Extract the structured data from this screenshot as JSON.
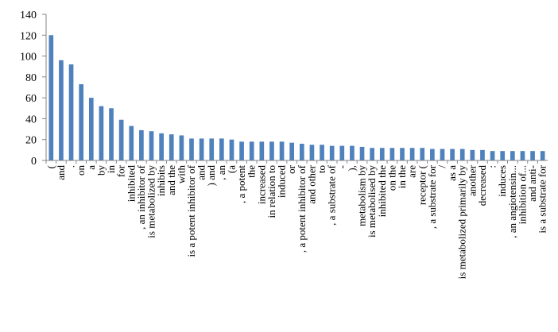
{
  "chart_data": {
    "type": "bar",
    "title": "",
    "xlabel": "",
    "ylabel": "",
    "ylim": [
      0,
      140
    ],
    "yticks": [
      0,
      20,
      40,
      60,
      80,
      100,
      120,
      140
    ],
    "grid": false,
    "legend": "none",
    "bar_color": "#4f81bd",
    "categories": [
      "(",
      "and",
      ".",
      "on",
      "a",
      "by",
      "in",
      "for",
      "inhibited",
      ", an inhibitor of",
      "is metabolized by",
      "inhibits",
      "and the",
      "with",
      "is a potent inhibitor of",
      "and",
      ") and",
      ", an",
      "(a",
      ", a potent",
      "the",
      "increased",
      "in relation to",
      "induced",
      "or",
      ", a potent inhibitor of",
      "and other",
      "to",
      ", a substrate of",
      "-",
      "),",
      "metabolism by",
      "is metabolised by",
      "inhibited the",
      "on the",
      "in the",
      "are",
      "receptor (",
      ", a substrate for",
      "/",
      "as a",
      "is metabolized primarily by",
      "another",
      "decreased",
      ":",
      "induces",
      ", an angiotensin...",
      "inhibition of...",
      "and anti-",
      "is a substrate for"
    ],
    "values": [
      120,
      96,
      92,
      73,
      60,
      52,
      50,
      39,
      33,
      29,
      28,
      26,
      25,
      24,
      21,
      21,
      21,
      21,
      20,
      18,
      18,
      18,
      18,
      18,
      17,
      16,
      15,
      15,
      14,
      14,
      14,
      13,
      12,
      12,
      12,
      12,
      12,
      12,
      11,
      11,
      11,
      11,
      10,
      10,
      9,
      9,
      9,
      9,
      9,
      9
    ]
  }
}
